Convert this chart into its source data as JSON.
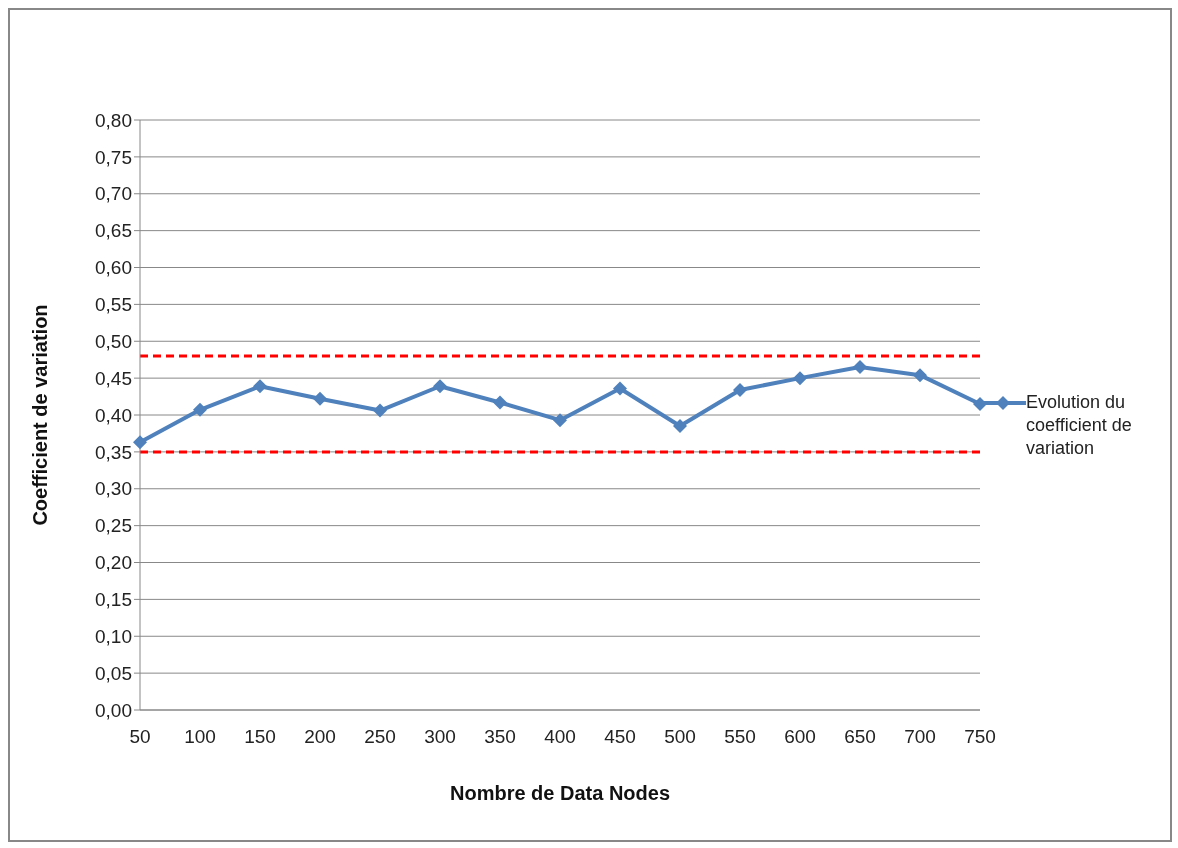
{
  "chart_data": {
    "type": "line",
    "xlabel": "Nombre de Data Nodes",
    "ylabel": "Coefficient de variation",
    "categories": [
      "50",
      "100",
      "150",
      "200",
      "250",
      "300",
      "350",
      "400",
      "450",
      "500",
      "550",
      "600",
      "650",
      "700",
      "750"
    ],
    "series": [
      {
        "name": "Evolution du coefficient de variation",
        "color": "#4f81bd",
        "values": [
          0.363,
          0.407,
          0.439,
          0.422,
          0.406,
          0.439,
          0.417,
          0.393,
          0.436,
          0.385,
          0.434,
          0.45,
          0.465,
          0.454,
          0.415
        ]
      }
    ],
    "ylim": [
      0,
      0.8
    ],
    "yticks": [
      {
        "value": 0,
        "label": "0,00"
      },
      {
        "value": 0.05,
        "label": "0,05"
      },
      {
        "value": 0.1,
        "label": "0,10"
      },
      {
        "value": 0.15,
        "label": "0,15"
      },
      {
        "value": 0.2,
        "label": "0,20"
      },
      {
        "value": 0.25,
        "label": "0,25"
      },
      {
        "value": 0.3,
        "label": "0,30"
      },
      {
        "value": 0.35,
        "label": "0,35"
      },
      {
        "value": 0.4,
        "label": "0,40"
      },
      {
        "value": 0.45,
        "label": "0,45"
      },
      {
        "value": 0.5,
        "label": "0,50"
      },
      {
        "value": 0.55,
        "label": "0,55"
      },
      {
        "value": 0.6,
        "label": "0,60"
      },
      {
        "value": 0.65,
        "label": "0,65"
      },
      {
        "value": 0.7,
        "label": "0,70"
      },
      {
        "value": 0.75,
        "label": "0,75"
      },
      {
        "value": 0.8,
        "label": "0,80"
      }
    ],
    "ref_lines": [
      {
        "axis": "y",
        "value": 0.48,
        "color": "#ff0000",
        "line_style": "dashed"
      },
      {
        "axis": "y",
        "value": 0.35,
        "color": "#ff0000",
        "line_style": "dashed"
      }
    ],
    "grid": "y",
    "legend": "right",
    "marker": "diamond",
    "line_style": "solid"
  }
}
